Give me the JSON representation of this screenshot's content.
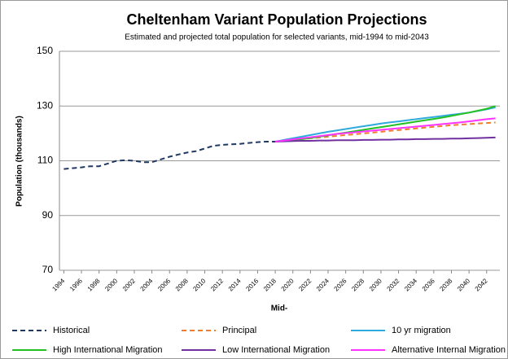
{
  "chart_data": {
    "type": "line",
    "title": "Cheltenham Variant Population Projections",
    "subtitle": "Estimated and projected total population for selected variants, mid-1994 to mid-2043",
    "y_label": "Population (thousands)",
    "x_label": "Mid-",
    "x": [
      1994,
      1995,
      1996,
      1997,
      1998,
      1999,
      2000,
      2001,
      2002,
      2003,
      2004,
      2005,
      2006,
      2007,
      2008,
      2009,
      2010,
      2011,
      2012,
      2013,
      2014,
      2015,
      2016,
      2017,
      2018,
      2019,
      2020,
      2021,
      2022,
      2023,
      2024,
      2025,
      2026,
      2027,
      2028,
      2029,
      2030,
      2031,
      2032,
      2033,
      2034,
      2035,
      2036,
      2037,
      2038,
      2039,
      2040,
      2041,
      2042,
      2043
    ],
    "xlim": [
      1993.5,
      2043.5
    ],
    "xticks": [
      1994,
      1996,
      1998,
      2000,
      2002,
      2004,
      2006,
      2008,
      2010,
      2012,
      2014,
      2016,
      2018,
      2020,
      2022,
      2024,
      2026,
      2028,
      2030,
      2032,
      2034,
      2036,
      2038,
      2040,
      2042
    ],
    "ylim": [
      70,
      150
    ],
    "yticks": [
      70,
      90,
      110,
      130,
      150
    ],
    "grid": true,
    "legend": "bottom",
    "series": [
      {
        "name": "Historical",
        "color": "#1f3864",
        "dashed": true,
        "values": [
          107,
          107.3,
          107.6,
          108,
          108,
          109,
          110,
          110.2,
          110,
          109.5,
          109.5,
          110.5,
          111.5,
          112.3,
          113,
          113.5,
          114.5,
          115.5,
          115.8,
          116,
          116.2,
          116.5,
          116.8,
          117,
          117,
          null,
          null,
          null,
          null,
          null,
          null,
          null,
          null,
          null,
          null,
          null,
          null,
          null,
          null,
          null,
          null,
          null,
          null,
          null,
          null,
          null,
          null,
          null,
          null,
          null
        ]
      },
      {
        "name": "Principal",
        "color": "#ed7d31",
        "dashed": true,
        "values": [
          null,
          null,
          null,
          null,
          null,
          null,
          null,
          null,
          null,
          null,
          null,
          null,
          null,
          null,
          null,
          null,
          null,
          null,
          null,
          null,
          null,
          null,
          null,
          null,
          117,
          117.3,
          117.6,
          117.9,
          118.2,
          118.5,
          118.8,
          119.1,
          119.4,
          119.7,
          120,
          120.3,
          120.6,
          120.9,
          121.2,
          121.5,
          121.8,
          122.1,
          122.4,
          122.7,
          123,
          123.2,
          123.4,
          123.6,
          123.8,
          124
        ]
      },
      {
        "name": "10 yr migration",
        "color": "#2eaadc",
        "dashed": false,
        "values": [
          null,
          null,
          null,
          null,
          null,
          null,
          null,
          null,
          null,
          null,
          null,
          null,
          null,
          null,
          null,
          null,
          null,
          null,
          null,
          null,
          null,
          null,
          null,
          null,
          117,
          117.6,
          118.2,
          118.8,
          119.4,
          120,
          120.6,
          121.1,
          121.6,
          122.1,
          122.6,
          123.1,
          123.6,
          124,
          124.4,
          124.8,
          125.2,
          125.6,
          126,
          126.4,
          126.8,
          127.2,
          127.6,
          128.2,
          128.8,
          129.5
        ]
      },
      {
        "name": "High International Migration",
        "color": "#22c022",
        "dashed": false,
        "values": [
          null,
          null,
          null,
          null,
          null,
          null,
          null,
          null,
          null,
          null,
          null,
          null,
          null,
          null,
          null,
          null,
          null,
          null,
          null,
          null,
          null,
          null,
          null,
          null,
          117,
          117.3,
          117.6,
          117.9,
          118.3,
          118.8,
          119.3,
          119.8,
          120.3,
          120.8,
          121.3,
          121.8,
          122.3,
          122.8,
          123.3,
          123.8,
          124.3,
          124.8,
          125.3,
          125.8,
          126.4,
          127,
          127.6,
          128.3,
          129,
          130
        ]
      },
      {
        "name": "Low International Migration",
        "color": "#7030a0",
        "dashed": false,
        "values": [
          null,
          null,
          null,
          null,
          null,
          null,
          null,
          null,
          null,
          null,
          null,
          null,
          null,
          null,
          null,
          null,
          null,
          null,
          null,
          null,
          null,
          null,
          null,
          null,
          117,
          117.1,
          117.2,
          117.3,
          117.3,
          117.4,
          117.4,
          117.5,
          117.5,
          117.5,
          117.6,
          117.6,
          117.7,
          117.7,
          117.8,
          117.8,
          117.9,
          117.9,
          118,
          118,
          118.1,
          118.1,
          118.2,
          118.3,
          118.4,
          118.5
        ]
      },
      {
        "name": "Alternative Internal Migration",
        "color": "#ff33ff",
        "dashed": false,
        "values": [
          null,
          null,
          null,
          null,
          null,
          null,
          null,
          null,
          null,
          null,
          null,
          null,
          null,
          null,
          null,
          null,
          null,
          null,
          null,
          null,
          null,
          null,
          null,
          null,
          117,
          117.4,
          117.8,
          118.2,
          118.6,
          119,
          119.4,
          119.8,
          120.1,
          120.4,
          120.7,
          121,
          121.3,
          121.6,
          121.9,
          122.2,
          122.5,
          122.8,
          123.1,
          123.4,
          123.7,
          124,
          124.4,
          124.8,
          125.2,
          125.5
        ]
      }
    ]
  }
}
